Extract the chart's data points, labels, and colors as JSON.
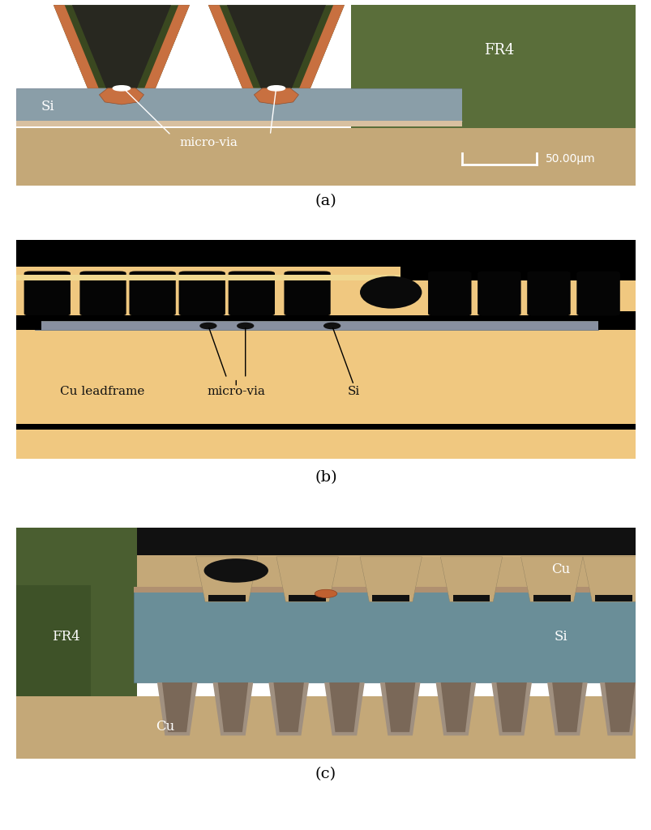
{
  "figure_width": 8.04,
  "figure_height": 10.24,
  "dpi": 100,
  "bg_color": "#ffffff",
  "panel_a": {
    "label": "(a)",
    "fr4_color_left": "#6b7a50",
    "fr4_color_right": "#5a6e3a",
    "fr4_dark": "#3d5020",
    "pcb_body_color": "#c4a878",
    "si_color": "#8a9ea8",
    "via_fill": "#c87040",
    "via_dark": "#1a1a18",
    "via_green": "#4a5c30",
    "white": "#ffffff"
  },
  "panel_b": {
    "label": "(b)",
    "bg_color": "#000000",
    "body_color": "#f0c880",
    "si_color": "#909aaa",
    "black": "#000000",
    "text_color": "#111111"
  },
  "panel_c": {
    "label": "(c)",
    "fr4_green": "#4a5e30",
    "fr4_dark": "#3a4e28",
    "body_color": "#c4a878",
    "si_color": "#6a8e98",
    "black": "#1a1a1a",
    "cu_color": "#c4a878",
    "white": "#ffffff"
  },
  "label_fontsize": 14
}
